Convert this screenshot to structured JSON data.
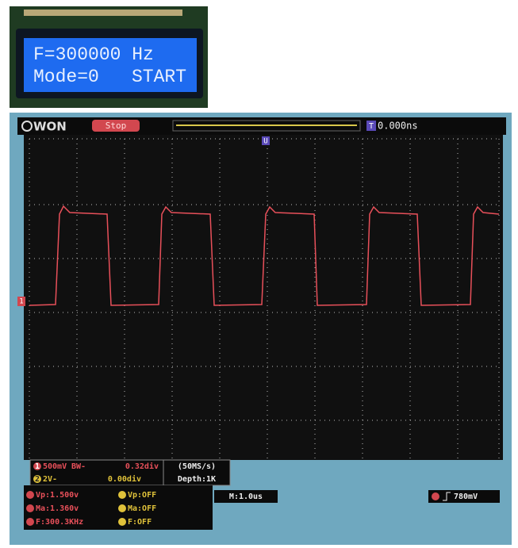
{
  "lcd": {
    "line1": "F=300000 Hz",
    "mode": "Mode=0",
    "status": "START"
  },
  "scope": {
    "brand": "WON",
    "state": "Stop",
    "trigger_marker": "T",
    "trigger_time": "0.000ns",
    "position_marker": "U",
    "ch1": {
      "index": "1",
      "scale": "500mV",
      "coupling": "BW-",
      "offset": "0.32div"
    },
    "ch2": {
      "index": "2",
      "scale": "2V-",
      "offset": "0.00div"
    },
    "sample_rate": "(50MS/s)",
    "depth": "Depth:1K",
    "ch1_measurements": [
      "Vp:1.500v",
      "Ma:1.360v",
      "F:300.3KHz"
    ],
    "ch2_measurements": [
      "Vp:OFF",
      "Ma:OFF",
      "F:OFF"
    ],
    "timebase": "M:1.0us",
    "trigger_level": "780mV"
  }
}
